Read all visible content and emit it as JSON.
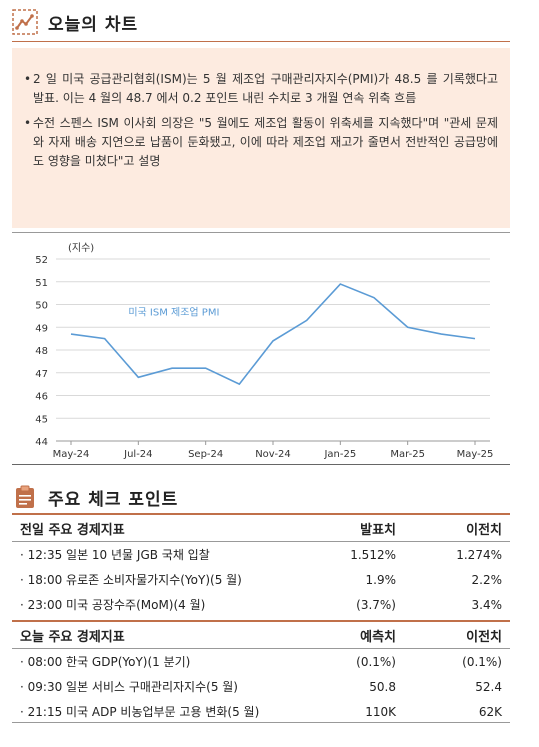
{
  "chart_section": {
    "title": "오늘의 차트"
  },
  "summary": {
    "bullets": [
      "2 일 미국 공급관리협회(ISM)는 5 월 제조업 구매관리자지수(PMI)가 48.5 를 기록했다고 발표. 이는 4 월의 48.7 에서 0.2 포인트 내린 수치로 3 개월 연속 위축 흐름",
      "수전 스펜스 ISM 이사회 의장은 \"5 월에도 제조업 활동이 위축세를 지속했다\"며 \"관세 문제와 자재 배송 지연으로 납품이 둔화됐고, 이에 따라 제조업 재고가 줄면서 전반적인 공급망에도 영향을 미쳤다\"고 설명"
    ]
  },
  "chart_data": {
    "type": "line",
    "ylabel": "(지수)",
    "ylim": [
      44,
      52
    ],
    "yticks": [
      44,
      45,
      46,
      47,
      48,
      49,
      50,
      51,
      52
    ],
    "x": [
      "May-24",
      "Jun-24",
      "Jul-24",
      "Aug-24",
      "Sep-24",
      "Oct-24",
      "Nov-24",
      "Dec-24",
      "Jan-25",
      "Feb-25",
      "Mar-25",
      "Apr-25",
      "May-25"
    ],
    "xticks": [
      "May-24",
      "Jul-24",
      "Sep-24",
      "Nov-24",
      "Jan-25",
      "Mar-25",
      "May-25"
    ],
    "series": [
      {
        "name": "미국 ISM 제조업 PMI",
        "values": [
          48.7,
          48.5,
          46.8,
          47.2,
          47.2,
          46.5,
          48.4,
          49.3,
          50.9,
          50.3,
          49.0,
          48.7,
          48.5
        ]
      }
    ],
    "line_color": "#5b9bd5",
    "grid": true
  },
  "check_section": {
    "title": "주요 체크 포인트"
  },
  "prev_table": {
    "headers": [
      "전일 주요 경제지표",
      "발표치",
      "이전치"
    ],
    "rows": [
      {
        "label": "· 12:35 일본 10 년물 JGB 국채 입찰",
        "actual": "1.512%",
        "prior": "1.274%"
      },
      {
        "label": "· 18:00 유로존 소비자물가지수(YoY)(5 월)",
        "actual": "1.9%",
        "prior": "2.2%"
      },
      {
        "label": "· 23:00 미국 공장수주(MoM)(4 월)",
        "actual": "(3.7%)",
        "prior": "3.4%"
      }
    ]
  },
  "today_table": {
    "headers": [
      "오늘 주요 경제지표",
      "예측치",
      "이전치"
    ],
    "rows": [
      {
        "label": "· 08:00 한국 GDP(YoY)(1 분기)",
        "forecast": "(0.1%)",
        "prior": "(0.1%)"
      },
      {
        "label": "· 09:30 일본 서비스 구매관리자지수(5 월)",
        "forecast": "50.8",
        "prior": "52.4"
      },
      {
        "label": "· 21:15 미국 ADP 비농업부문 고용 변화(5 월)",
        "forecast": "110K",
        "prior": "62K"
      }
    ]
  },
  "colors": {
    "accent": "#c0704a",
    "summary_bg": "#fdebe0"
  }
}
